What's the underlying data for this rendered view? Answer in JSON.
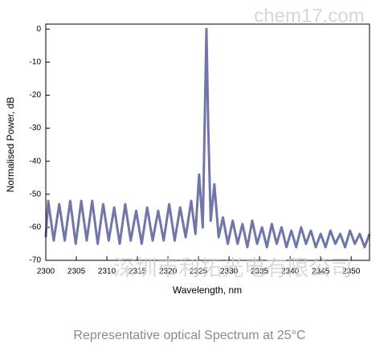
{
  "chart_data": {
    "type": "line",
    "caption": "Representative optical Spectrum at 25°C",
    "x_label": "Wavelength, nm",
    "y_label": "Normalised Power, dB",
    "watermarks": [
      "chem17.com",
      "深圳市利拓光电有限公司"
    ],
    "xlim": [
      2300,
      2353
    ],
    "ylim": [
      -70,
      1.5
    ],
    "xticks": [
      2300,
      2305,
      2310,
      2315,
      2320,
      2325,
      2330,
      2335,
      2340,
      2345,
      2350
    ],
    "yticks": [
      0,
      -10,
      -20,
      -30,
      -40,
      -50,
      -60,
      -70
    ],
    "x": [
      2300,
      2300.4,
      2301.3,
      2302.2,
      2303.1,
      2304.0,
      2304.9,
      2305.8,
      2306.7,
      2307.6,
      2308.5,
      2309.4,
      2310.3,
      2311.2,
      2312.1,
      2313.0,
      2313.9,
      2314.8,
      2315.7,
      2316.6,
      2317.5,
      2318.4,
      2319.3,
      2320.2,
      2321.1,
      2322.0,
      2322.9,
      2323.8,
      2324.5,
      2325.1,
      2325.7,
      2326.0,
      2326.3,
      2326.6,
      2327.0,
      2327.6,
      2328.3,
      2329.0,
      2329.8,
      2330.6,
      2331.4,
      2332.2,
      2333.0,
      2333.8,
      2334.6,
      2335.4,
      2336.2,
      2337.0,
      2337.8,
      2338.6,
      2339.4,
      2340.2,
      2341.0,
      2341.8,
      2342.6,
      2343.4,
      2344.2,
      2345.0,
      2345.8,
      2346.6,
      2347.4,
      2348.2,
      2349.0,
      2349.8,
      2350.6,
      2351.4,
      2352.2,
      2353
    ],
    "series": [
      {
        "color": "#7076a8",
        "values": [
          -63,
          -52,
          -64,
          -53,
          -64,
          -52,
          -65,
          -52,
          -64,
          -52,
          -65,
          -53,
          -64,
          -54,
          -65,
          -53,
          -64,
          -55,
          -65,
          -54,
          -64,
          -55,
          -64,
          -53,
          -64,
          -54,
          -63,
          -52,
          -62,
          -44,
          -60,
          -30,
          0,
          -30,
          -58,
          -47,
          -63,
          -57,
          -65,
          -58,
          -65,
          -59,
          -66,
          -58,
          -65,
          -60,
          -66,
          -59,
          -65,
          -60,
          -66,
          -61,
          -66,
          -60,
          -65,
          -61,
          -66,
          -62,
          -66,
          -61,
          -65,
          -62,
          -66,
          -61,
          -65,
          -62,
          -66,
          -62
        ]
      }
    ]
  }
}
